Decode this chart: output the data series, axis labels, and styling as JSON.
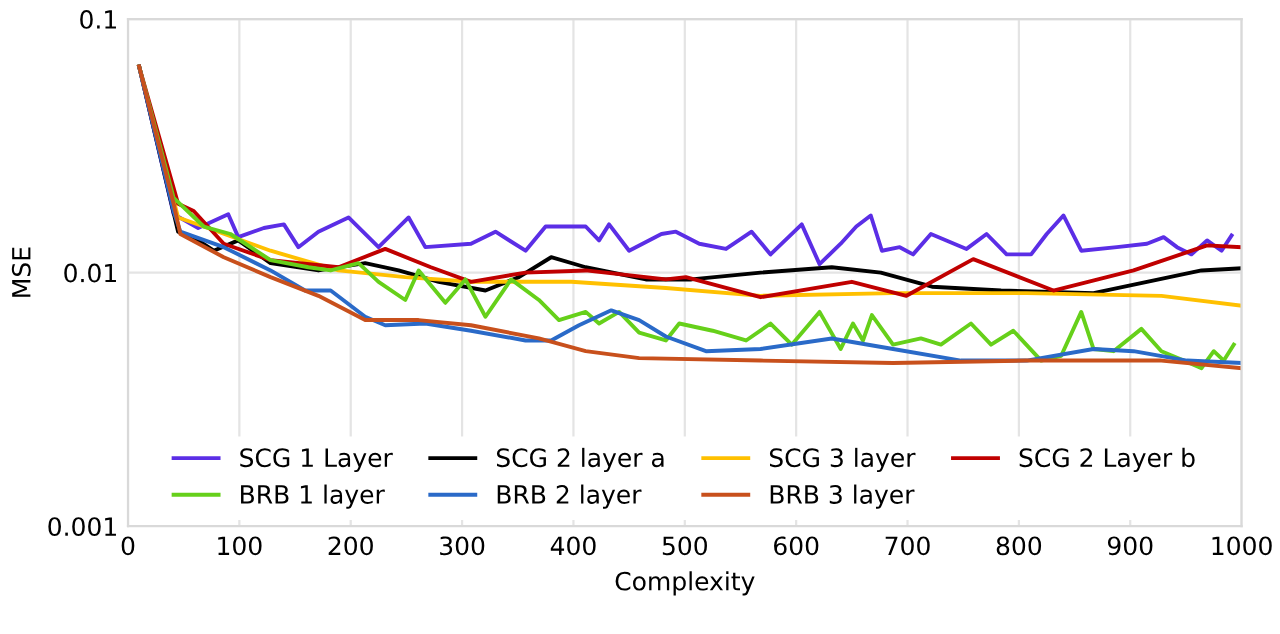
{
  "chart_data": {
    "type": "line",
    "xlabel": "Complexity",
    "ylabel": "MSE",
    "log": "y",
    "xlim": [
      0,
      1000
    ],
    "ylim": [
      0.001,
      0.1
    ],
    "xticks": [
      0,
      100,
      200,
      300,
      400,
      500,
      600,
      700,
      800,
      900,
      1000
    ],
    "yticks": [
      0.001,
      0.01,
      0.1
    ],
    "grid": true,
    "legend": "bottom",
    "marker": "none",
    "line_style": "solid",
    "series": [
      {
        "name": "SCG 1 Layer",
        "color": "#5b2ee6",
        "x": [
          10,
          41,
          63,
          90,
          99,
          122,
          140,
          153,
          171,
          198,
          225,
          252,
          267,
          308,
          330,
          357,
          375,
          411,
          423,
          432,
          450,
          479,
          492,
          513,
          537,
          560,
          577,
          605,
          621,
          640,
          654,
          667,
          677,
          693,
          705,
          721,
          753,
          771,
          789,
          811,
          825,
          840,
          856,
          888,
          915,
          930,
          942,
          955,
          969,
          982,
          991
        ],
        "values": [
          0.065,
          0.017,
          0.015,
          0.017,
          0.0138,
          0.015,
          0.0155,
          0.0126,
          0.0145,
          0.0165,
          0.0126,
          0.0165,
          0.0126,
          0.013,
          0.0145,
          0.0122,
          0.0152,
          0.0152,
          0.0134,
          0.0155,
          0.0122,
          0.0142,
          0.0145,
          0.013,
          0.0124,
          0.0145,
          0.0118,
          0.0155,
          0.0108,
          0.013,
          0.0152,
          0.0168,
          0.0122,
          0.0126,
          0.0118,
          0.0142,
          0.0124,
          0.0142,
          0.0118,
          0.0118,
          0.0142,
          0.0168,
          0.0122,
          0.0126,
          0.013,
          0.0138,
          0.0126,
          0.0118,
          0.0134,
          0.0122,
          0.014
        ]
      },
      {
        "name": "SCG 2 layer a",
        "color": "#000000",
        "x": [
          10,
          45,
          63,
          77,
          99,
          128,
          171,
          213,
          243,
          279,
          321,
          351,
          380,
          411,
          465,
          506,
          568,
          632,
          676,
          722,
          784,
          867,
          915,
          964,
          1000
        ],
        "values": [
          0.065,
          0.0145,
          0.0134,
          0.0122,
          0.0134,
          0.0109,
          0.0102,
          0.0109,
          0.0102,
          0.0092,
          0.0085,
          0.0096,
          0.0115,
          0.0105,
          0.0094,
          0.0094,
          0.01,
          0.0105,
          0.01,
          0.0088,
          0.0085,
          0.0083,
          0.0092,
          0.0102,
          0.0104
        ]
      },
      {
        "name": "SCG 3 layer",
        "color": "#ffc000",
        "x": [
          10,
          45,
          68,
          128,
          189,
          249,
          308,
          398,
          483,
          568,
          687,
          807,
          928,
          1000
        ],
        "values": [
          0.065,
          0.0165,
          0.0152,
          0.0122,
          0.0102,
          0.0096,
          0.0092,
          0.0092,
          0.0087,
          0.0081,
          0.0083,
          0.0083,
          0.0081,
          0.0074
        ]
      },
      {
        "name": "SCG 2 Layer b",
        "color": "#c00000",
        "x": [
          10,
          45,
          59,
          86,
          128,
          189,
          231,
          272,
          308,
          357,
          411,
          483,
          501,
          568,
          650,
          699,
          759,
          831,
          903,
          969,
          1000
        ],
        "values": [
          0.065,
          0.0187,
          0.0175,
          0.013,
          0.0112,
          0.0105,
          0.0124,
          0.0105,
          0.0092,
          0.01,
          0.0102,
          0.0094,
          0.0096,
          0.008,
          0.0092,
          0.0081,
          0.0113,
          0.0085,
          0.0102,
          0.0128,
          0.0126
        ]
      },
      {
        "name": "BRB 1 layer",
        "color": "#66d01a",
        "x": [
          10,
          41,
          68,
          92,
          128,
          162,
          182,
          207,
          225,
          249,
          261,
          285,
          303,
          321,
          344,
          369,
          387,
          411,
          423,
          441,
          459,
          483,
          495,
          525,
          555,
          577,
          596,
          621,
          640,
          651,
          660,
          668,
          687,
          712,
          730,
          757,
          775,
          795,
          820,
          838,
          856,
          867,
          885,
          910,
          928,
          948,
          964,
          975,
          984,
          993
        ],
        "values": [
          0.065,
          0.0197,
          0.0152,
          0.0142,
          0.0112,
          0.0105,
          0.0102,
          0.0109,
          0.0092,
          0.0078,
          0.0102,
          0.0076,
          0.0094,
          0.0067,
          0.0094,
          0.0078,
          0.0065,
          0.007,
          0.0063,
          0.007,
          0.0058,
          0.0054,
          0.0063,
          0.0059,
          0.0054,
          0.0063,
          0.0052,
          0.007,
          0.005,
          0.0063,
          0.0054,
          0.0068,
          0.0052,
          0.0055,
          0.0052,
          0.0063,
          0.0052,
          0.0059,
          0.0045,
          0.0047,
          0.007,
          0.005,
          0.0049,
          0.006,
          0.0049,
          0.0045,
          0.0042,
          0.0049,
          0.0045,
          0.0052
        ]
      },
      {
        "name": "BRB 2 layer",
        "color": "#2a6ac8",
        "x": [
          10,
          41,
          47,
          86,
          128,
          159,
          182,
          213,
          231,
          267,
          308,
          357,
          380,
          405,
          434,
          459,
          483,
          519,
          568,
          632,
          687,
          748,
          807,
          867,
          903,
          951,
          1000
        ],
        "values": [
          0.065,
          0.0174,
          0.0145,
          0.0126,
          0.0102,
          0.0085,
          0.0085,
          0.0067,
          0.0062,
          0.0063,
          0.0059,
          0.0054,
          0.0054,
          0.0062,
          0.0071,
          0.0065,
          0.0056,
          0.0049,
          0.005,
          0.0055,
          0.005,
          0.0045,
          0.0045,
          0.005,
          0.0049,
          0.0045,
          0.0044
        ]
      },
      {
        "name": "BRB 3 layer",
        "color": "#c8501c",
        "x": [
          10,
          41,
          47,
          86,
          128,
          171,
          213,
          261,
          308,
          369,
          411,
          459,
          568,
          687,
          807,
          928,
          1000
        ],
        "values": [
          0.065,
          0.0187,
          0.0142,
          0.0115,
          0.0096,
          0.0081,
          0.0065,
          0.0065,
          0.0062,
          0.0055,
          0.0049,
          0.0046,
          0.0045,
          0.0044,
          0.0045,
          0.0045,
          0.0042
        ]
      }
    ]
  }
}
